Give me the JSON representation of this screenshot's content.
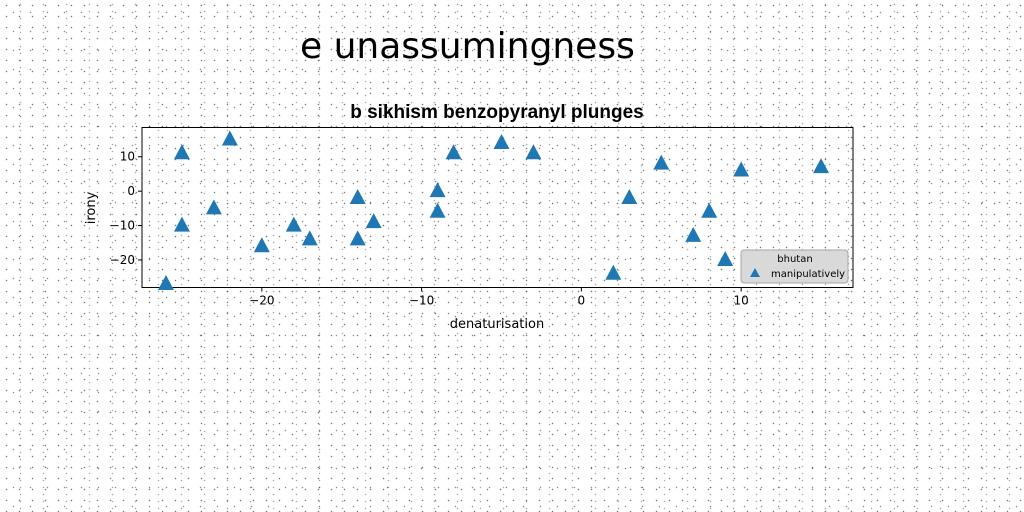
{
  "suptitle": "e unassumingness",
  "chart_data": {
    "type": "scatter",
    "title": "b sikhism benzopyranyl plunges",
    "xlabel": "denaturisation",
    "ylabel": "irony",
    "xlim": [
      -27.5,
      17
    ],
    "ylim": [
      -28,
      18.5
    ],
    "xticks": [
      -20,
      -10,
      0,
      10
    ],
    "xtick_labels": [
      "−20",
      "−10",
      "0",
      "10"
    ],
    "yticks": [
      -20,
      -10,
      0,
      10
    ],
    "ytick_labels": [
      "−20",
      "−10",
      "0",
      "10"
    ],
    "grid": false,
    "marker": "triangle",
    "color": "#1f77b4",
    "legend": {
      "title": "bhutan",
      "placement": "lower right"
    },
    "series": [
      {
        "name": "manipulatively",
        "points": [
          [
            -26,
            -27
          ],
          [
            -25,
            11
          ],
          [
            -25,
            -10
          ],
          [
            -23,
            -5
          ],
          [
            -22,
            15
          ],
          [
            -20,
            -16
          ],
          [
            -18,
            -10
          ],
          [
            -17,
            -14
          ],
          [
            -14,
            -2
          ],
          [
            -14,
            -14
          ],
          [
            -13,
            -9
          ],
          [
            -9,
            0
          ],
          [
            -9,
            -6
          ],
          [
            -8,
            11
          ],
          [
            -5,
            14
          ],
          [
            -3,
            11
          ],
          [
            2,
            -24
          ],
          [
            3,
            -2
          ],
          [
            5,
            8
          ],
          [
            7,
            -13
          ],
          [
            8,
            -6
          ],
          [
            9,
            -20
          ],
          [
            10,
            6
          ],
          [
            15,
            7
          ]
        ]
      }
    ]
  }
}
